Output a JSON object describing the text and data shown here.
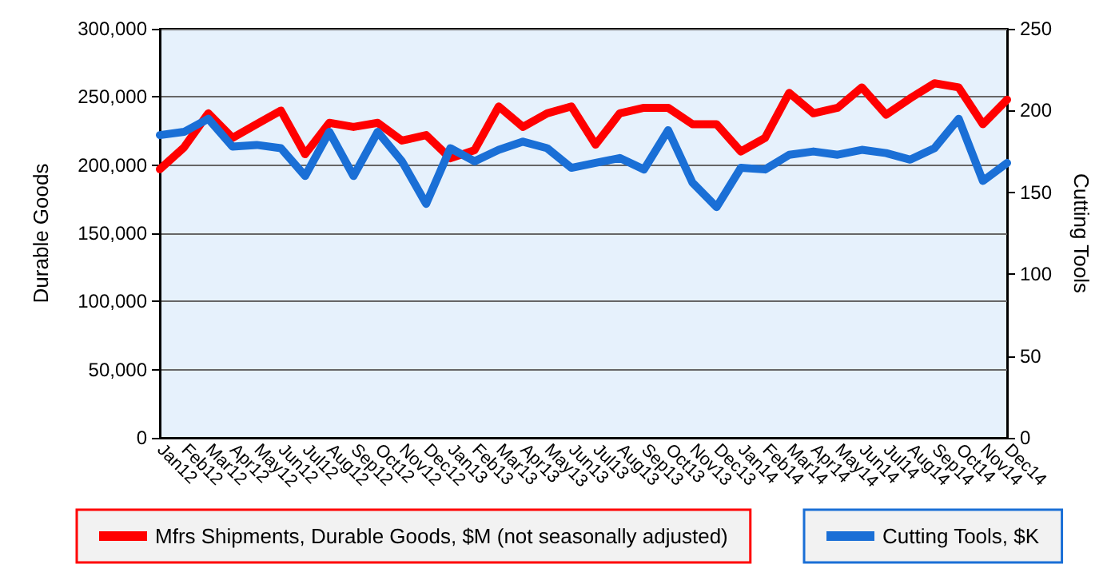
{
  "chart_data": {
    "type": "line",
    "ylabel": "Durable Goods",
    "y2label": "Cutting Tools",
    "categories": [
      "Jan12",
      "Feb12",
      "Mar12",
      "Apr12",
      "May12",
      "Jun12",
      "Jul12",
      "Aug12",
      "Sep12",
      "Oct12",
      "Nov12",
      "Dec12",
      "Jan13",
      "Feb13",
      "Mar13",
      "Apr13",
      "May13",
      "Jun13",
      "Jul13",
      "Aug13",
      "Sep13",
      "Oct13",
      "Nov13",
      "Dec13",
      "Jan14",
      "Feb14",
      "Mar14",
      "Apr14",
      "May14",
      "Jun14",
      "Jul14",
      "Aug14",
      "Sep14",
      "Oct14",
      "Nov14",
      "Dec14"
    ],
    "series": [
      {
        "name": "Mfrs Shipments, Durable Goods, $M (not seasonally adjusted)",
        "color": "#ff0000",
        "values": [
          197000,
          213000,
          238000,
          220000,
          230000,
          240000,
          208000,
          231000,
          228000,
          231000,
          218000,
          222000,
          205000,
          211000,
          243000,
          228000,
          238000,
          243000,
          215000,
          238000,
          242000,
          242000,
          230000,
          230000,
          210000,
          220000,
          253000,
          238000,
          242000,
          257000,
          237000,
          249000,
          260000,
          257000,
          230000,
          248000
        ]
      },
      {
        "name": "Cutting Tools, $K",
        "color": "#1a6fd6",
        "axis": "y2",
        "values": [
          185,
          187,
          195,
          178,
          179,
          177,
          160,
          187,
          160,
          187,
          169,
          143,
          177,
          169,
          176,
          181,
          177,
          165,
          168,
          171,
          164,
          188,
          156,
          141,
          165,
          164,
          173,
          175,
          173,
          176,
          174,
          170,
          177,
          195,
          157,
          168
        ]
      }
    ],
    "ylim": [
      0,
      300000
    ],
    "yticks": [
      0,
      {
        "value": 50000,
        "label": "50,000"
      },
      {
        "value": 100000,
        "label": "100,000"
      },
      {
        "value": 150000,
        "label": "150,000"
      },
      {
        "value": 200000,
        "label": "200,000"
      },
      {
        "value": 250000,
        "label": "250,000"
      },
      {
        "value": 300000,
        "label": "300,000"
      }
    ],
    "y2lim": [
      0,
      250
    ],
    "y2ticks": [
      0,
      50,
      100,
      150,
      200,
      250
    ],
    "grid": "y",
    "legend": "bottom",
    "marker": "none",
    "line_style": "solid"
  }
}
